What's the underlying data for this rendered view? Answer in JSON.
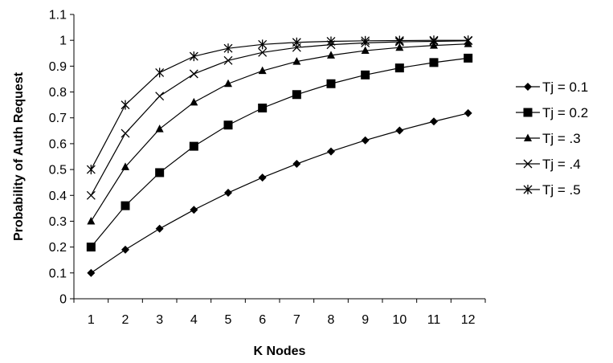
{
  "chart_data": {
    "type": "line",
    "title": "",
    "xlabel": "K Nodes",
    "ylabel": "Probability of Auth Request",
    "categories": [
      "1",
      "2",
      "3",
      "4",
      "5",
      "6",
      "7",
      "8",
      "9",
      "10",
      "11",
      "12"
    ],
    "ylim": [
      0,
      1.1
    ],
    "yticks": [
      "0",
      "0.1",
      "0.2",
      "0.3",
      "0.4",
      "0.5",
      "0.6",
      "0.7",
      "0.8",
      "0.9",
      "1",
      "1.1"
    ],
    "grid": false,
    "legend_position": "right",
    "series": [
      {
        "name": "Tj = 0.1",
        "marker": "diamond",
        "values": [
          0.1,
          0.19,
          0.271,
          0.344,
          0.41,
          0.469,
          0.522,
          0.57,
          0.613,
          0.651,
          0.686,
          0.718
        ]
      },
      {
        "name": "Tj = 0.2",
        "marker": "square",
        "values": [
          0.2,
          0.36,
          0.488,
          0.59,
          0.672,
          0.738,
          0.79,
          0.832,
          0.866,
          0.893,
          0.914,
          0.931
        ]
      },
      {
        "name": "Tj = .3",
        "marker": "triangle",
        "values": [
          0.3,
          0.51,
          0.657,
          0.76,
          0.832,
          0.882,
          0.918,
          0.942,
          0.96,
          0.972,
          0.98,
          0.986
        ]
      },
      {
        "name": "Tj = .4",
        "marker": "x",
        "values": [
          0.4,
          0.64,
          0.784,
          0.87,
          0.922,
          0.953,
          0.972,
          0.983,
          0.99,
          0.994,
          0.996,
          0.998
        ]
      },
      {
        "name": "Tj = .5",
        "marker": "star",
        "values": [
          0.5,
          0.75,
          0.875,
          0.938,
          0.969,
          0.984,
          0.992,
          0.996,
          0.998,
          0.999,
          1.0,
          1.0
        ]
      }
    ],
    "colors": {
      "line": "#000000",
      "axis": "#000000",
      "background": "#ffffff"
    }
  }
}
